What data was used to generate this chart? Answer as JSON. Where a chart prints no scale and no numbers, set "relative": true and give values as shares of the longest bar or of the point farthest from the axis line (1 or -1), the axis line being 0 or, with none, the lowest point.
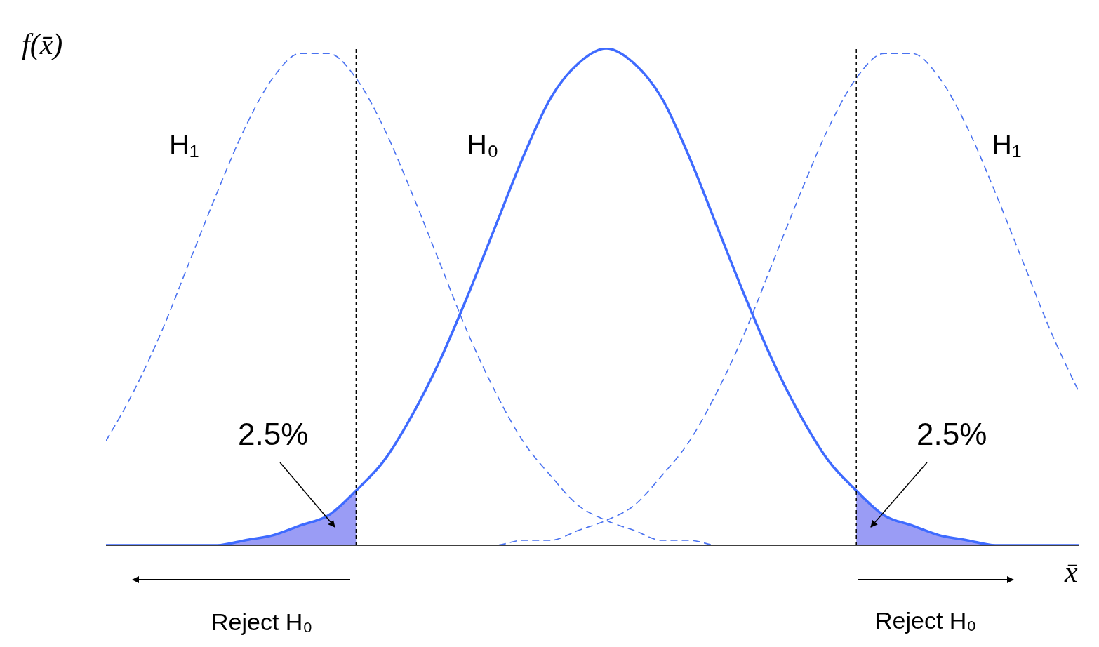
{
  "chart_data": {
    "type": "line",
    "relative": true,
    "ylabel": "f(x̄)",
    "xlabel": "x̄",
    "marker": "none",
    "categories": [
      null,
      null,
      null,
      null,
      null,
      null,
      null,
      null,
      null,
      null,
      null,
      null,
      null,
      null,
      null,
      null,
      null,
      null,
      null,
      null,
      null,
      null,
      null,
      null,
      null,
      null,
      null,
      null,
      null,
      null,
      null,
      null,
      null,
      null,
      null,
      null
    ],
    "series": [
      {
        "type": "area",
        "color": "#9a9cf5",
        "values": [
          0,
          0,
          0,
          0,
          0,
          0.01,
          0.02,
          0.04,
          0.06,
          0.11,
          null,
          null,
          null,
          null,
          null,
          null,
          null,
          null,
          null,
          null,
          null,
          null,
          null,
          null,
          null,
          null,
          null,
          null,
          null,
          null,
          null,
          null,
          null,
          null,
          null,
          null
        ]
      },
      {
        "type": "area",
        "color": "#9a9cf5",
        "values": [
          null,
          null,
          null,
          null,
          null,
          null,
          null,
          null,
          null,
          null,
          null,
          null,
          null,
          null,
          null,
          null,
          null,
          null,
          null,
          null,
          null,
          null,
          null,
          null,
          null,
          null,
          null,
          0.11,
          0.06,
          0.04,
          0.02,
          0.01,
          0,
          0,
          0,
          0
        ]
      },
      {
        "color": "#4a72f0",
        "line_style": "dashed",
        "values": [
          0.21,
          0.31,
          0.43,
          0.57,
          0.71,
          0.84,
          0.94,
          0.99,
          0.99,
          0.94,
          0.84,
          0.71,
          0.57,
          0.43,
          0.31,
          0.21,
          0.14,
          0.08,
          0.05,
          0.03,
          0.01,
          0.01,
          0,
          0,
          0,
          0,
          0,
          0,
          0,
          0,
          0,
          0,
          0,
          0,
          0,
          0
        ]
      },
      {
        "color": "#4a72f0",
        "line_style": "dashed",
        "values": [
          0,
          0,
          0,
          0,
          0,
          0,
          0,
          0,
          0,
          0,
          0,
          0,
          0,
          0,
          0,
          0.01,
          0.01,
          0.03,
          0.05,
          0.08,
          0.14,
          0.21,
          0.31,
          0.43,
          0.57,
          0.71,
          0.84,
          0.94,
          0.99,
          0.99,
          0.94,
          0.84,
          0.71,
          0.57,
          0.43,
          0.31
        ]
      },
      {
        "color": "#3f6bff",
        "line_style": "solid",
        "values": [
          0,
          0,
          0,
          0,
          0,
          0.01,
          0.02,
          0.04,
          0.06,
          0.11,
          0.17,
          0.26,
          0.37,
          0.5,
          0.64,
          0.78,
          0.9,
          0.97,
          1,
          0.97,
          0.9,
          0.78,
          0.64,
          0.5,
          0.37,
          0.26,
          0.17,
          0.11,
          0.06,
          0.04,
          0.02,
          0.01,
          0,
          0,
          0,
          0
        ]
      }
    ],
    "annotations": [
      "H₁",
      "H₀",
      "H₁",
      "2.5%",
      "2.5%",
      "Reject H₀",
      "Reject H₀"
    ]
  }
}
